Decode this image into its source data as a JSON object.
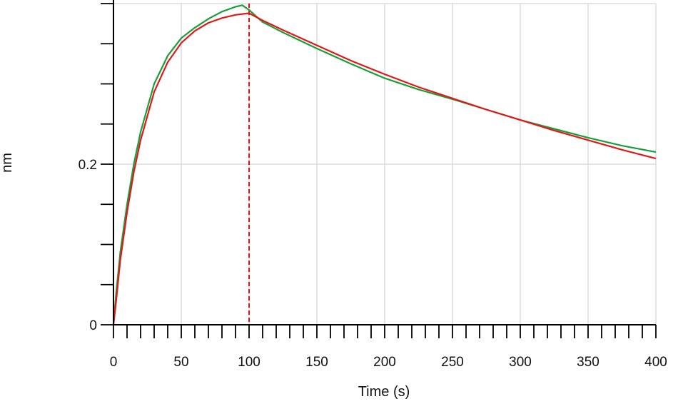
{
  "chart_data": {
    "type": "line",
    "xlabel": "Time (s)",
    "ylabel": "nm",
    "xlim": [
      0,
      400
    ],
    "ylim": [
      0,
      0.4
    ],
    "x_ticks": [
      {
        "value": 0,
        "label": "0"
      },
      {
        "value": 50,
        "label": "50"
      },
      {
        "value": 100,
        "label": "100"
      },
      {
        "value": 150,
        "label": "150"
      },
      {
        "value": 200,
        "label": "200"
      },
      {
        "value": 250,
        "label": "250"
      },
      {
        "value": 300,
        "label": "300"
      },
      {
        "value": 350,
        "label": "350"
      },
      {
        "value": 400,
        "label": "400"
      }
    ],
    "y_ticks": [
      {
        "value": 0,
        "label": "0"
      },
      {
        "value": 0.2,
        "label": "0.2"
      }
    ],
    "x_minor_step": 10,
    "y_minor_step": 0.05,
    "grid": true,
    "grid_color": "#dcdcdc",
    "vertical_markers": [
      {
        "x": 0,
        "color": "#d00000",
        "style": "dashed"
      },
      {
        "x": 100,
        "color": "#d00000",
        "style": "dashed"
      }
    ],
    "series": [
      {
        "color": "#1a9e3c",
        "points": [
          [
            0,
            0.0
          ],
          [
            2,
            0.04
          ],
          [
            5,
            0.09
          ],
          [
            10,
            0.15
          ],
          [
            15,
            0.2
          ],
          [
            20,
            0.24
          ],
          [
            30,
            0.3
          ],
          [
            40,
            0.335
          ],
          [
            50,
            0.357
          ],
          [
            60,
            0.37
          ],
          [
            70,
            0.381
          ],
          [
            80,
            0.39
          ],
          [
            90,
            0.396
          ],
          [
            95,
            0.398
          ],
          [
            100,
            0.392
          ],
          [
            110,
            0.377
          ],
          [
            125,
            0.364
          ],
          [
            150,
            0.344
          ],
          [
            175,
            0.325
          ],
          [
            200,
            0.307
          ],
          [
            225,
            0.293
          ],
          [
            250,
            0.281
          ],
          [
            275,
            0.268
          ],
          [
            300,
            0.255
          ],
          [
            325,
            0.244
          ],
          [
            350,
            0.233
          ],
          [
            375,
            0.223
          ],
          [
            400,
            0.215
          ]
        ]
      },
      {
        "color": "#e01818",
        "points": [
          [
            0,
            0.0
          ],
          [
            2,
            0.03
          ],
          [
            5,
            0.08
          ],
          [
            10,
            0.14
          ],
          [
            15,
            0.19
          ],
          [
            20,
            0.23
          ],
          [
            30,
            0.29
          ],
          [
            40,
            0.327
          ],
          [
            50,
            0.351
          ],
          [
            60,
            0.366
          ],
          [
            70,
            0.376
          ],
          [
            80,
            0.382
          ],
          [
            90,
            0.386
          ],
          [
            100,
            0.388
          ],
          [
            110,
            0.379
          ],
          [
            125,
            0.367
          ],
          [
            150,
            0.348
          ],
          [
            175,
            0.329
          ],
          [
            200,
            0.312
          ],
          [
            225,
            0.296
          ],
          [
            250,
            0.282
          ],
          [
            275,
            0.268
          ],
          [
            300,
            0.255
          ],
          [
            325,
            0.242
          ],
          [
            350,
            0.23
          ],
          [
            375,
            0.218
          ],
          [
            400,
            0.207
          ]
        ]
      }
    ]
  }
}
